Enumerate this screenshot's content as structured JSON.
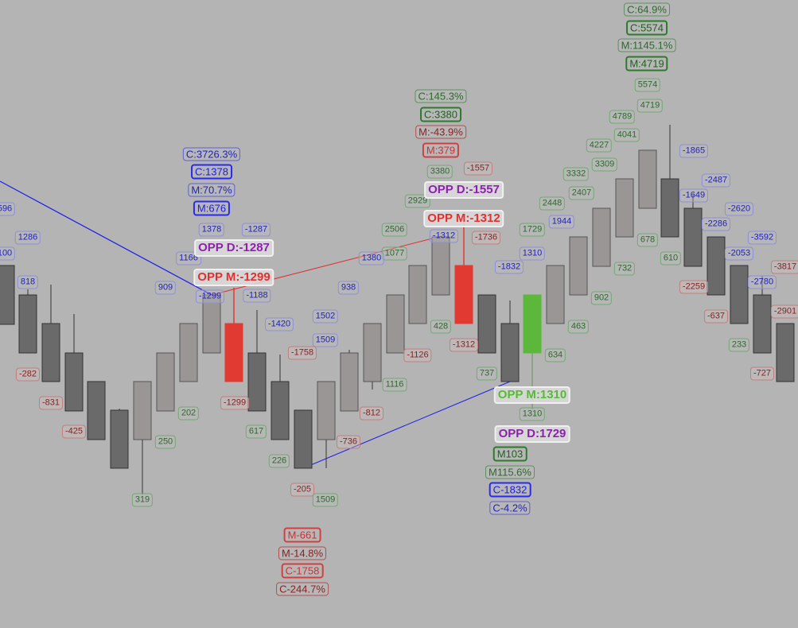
{
  "chart_data": {
    "type": "candlestick",
    "colors": {
      "up": "#9a9696",
      "down": "#6a6a6a",
      "highlight_down": "#e03a32",
      "highlight_up": "#5cb83a",
      "trend_blue": "#1a1aee",
      "trend_red": "#e03030"
    },
    "labels": [
      {
        "text": "C:64.9%",
        "style": "gm"
      },
      {
        "text": "C:5574",
        "style": "gs"
      },
      {
        "text": "M:1145.1%",
        "style": "gm"
      },
      {
        "text": "M:4719",
        "style": "gs"
      },
      {
        "text": "5574",
        "style": "g"
      },
      {
        "text": "4719",
        "style": "g"
      },
      {
        "text": "4789",
        "style": "g"
      },
      {
        "text": "4041",
        "style": "g"
      },
      {
        "text": "4227",
        "style": "g"
      },
      {
        "text": "3309",
        "style": "g"
      },
      {
        "text": "3332",
        "style": "g"
      },
      {
        "text": "2407",
        "style": "g"
      },
      {
        "text": "2448",
        "style": "g"
      },
      {
        "text": "1729",
        "style": "g"
      },
      {
        "text": "1944",
        "style": "b"
      },
      {
        "text": "1310",
        "style": "b"
      },
      {
        "text": "-1832",
        "style": "b"
      },
      {
        "text": "-1736",
        "style": "r"
      },
      {
        "text": "-1312",
        "style": "b faint"
      },
      {
        "text": "-1557",
        "style": "r"
      },
      {
        "text": "C:145.3%",
        "style": "gm"
      },
      {
        "text": "C:3380",
        "style": "gs"
      },
      {
        "text": "M:-43.9%",
        "style": "rm"
      },
      {
        "text": "M:379",
        "style": "rs"
      },
      {
        "text": "3380",
        "style": "g"
      },
      {
        "text": "2929",
        "style": "g"
      },
      {
        "text": "2506",
        "style": "g"
      },
      {
        "text": "1077",
        "style": "g"
      },
      {
        "text": "1380",
        "style": "b"
      },
      {
        "text": "938",
        "style": "b"
      },
      {
        "text": "1502",
        "style": "b"
      },
      {
        "text": "1509",
        "style": "b"
      },
      {
        "text": "-1758",
        "style": "r"
      },
      {
        "text": "-1420",
        "style": "b"
      },
      {
        "text": "-1188",
        "style": "b"
      },
      {
        "text": "-1299",
        "style": "b faint"
      },
      {
        "text": "-1287",
        "style": "b"
      },
      {
        "text": "C:3726.3%",
        "style": "bm"
      },
      {
        "text": "C:1378",
        "style": "bs"
      },
      {
        "text": "M:70.7%",
        "style": "bm"
      },
      {
        "text": "M:676",
        "style": "bs"
      },
      {
        "text": "1378",
        "style": "b"
      },
      {
        "text": "1166",
        "style": "b"
      },
      {
        "text": "909",
        "style": "b"
      },
      {
        "text": "596",
        "style": "b"
      },
      {
        "text": "1286",
        "style": "b"
      },
      {
        "text": "100",
        "style": "b"
      },
      {
        "text": "818",
        "style": "b"
      },
      {
        "text": "-282",
        "style": "r"
      },
      {
        "text": "-831",
        "style": "r"
      },
      {
        "text": "-425",
        "style": "r"
      },
      {
        "text": "319",
        "style": "g"
      },
      {
        "text": "250",
        "style": "g"
      },
      {
        "text": "202",
        "style": "g"
      },
      {
        "text": "-1299",
        "style": "r"
      },
      {
        "text": "617",
        "style": "g"
      },
      {
        "text": "226",
        "style": "g"
      },
      {
        "text": "-205",
        "style": "r"
      },
      {
        "text": "1509",
        "style": "g"
      },
      {
        "text": "-736",
        "style": "r"
      },
      {
        "text": "-812",
        "style": "r"
      },
      {
        "text": "1116",
        "style": "g"
      },
      {
        "text": "-1126",
        "style": "r"
      },
      {
        "text": "428",
        "style": "g"
      },
      {
        "text": "-1312",
        "style": "r"
      },
      {
        "text": "737",
        "style": "g"
      },
      {
        "text": "634",
        "style": "g"
      },
      {
        "text": "463",
        "style": "g"
      },
      {
        "text": "902",
        "style": "g"
      },
      {
        "text": "732",
        "style": "g"
      },
      {
        "text": "678",
        "style": "g"
      },
      {
        "text": "610",
        "style": "g"
      },
      {
        "text": "-2259",
        "style": "r"
      },
      {
        "text": "-637",
        "style": "r"
      },
      {
        "text": "233",
        "style": "g"
      },
      {
        "text": "-727",
        "style": "r"
      },
      {
        "text": "-1865",
        "style": "b"
      },
      {
        "text": "-2487",
        "style": "b"
      },
      {
        "text": "-1649",
        "style": "b"
      },
      {
        "text": "-2620",
        "style": "b"
      },
      {
        "text": "-2286",
        "style": "b"
      },
      {
        "text": "-3592",
        "style": "b"
      },
      {
        "text": "-2053",
        "style": "b"
      },
      {
        "text": "-3817",
        "style": "r"
      },
      {
        "text": "-2780",
        "style": "b"
      },
      {
        "text": "-2901",
        "style": "r"
      },
      {
        "text": "1310",
        "style": "g"
      },
      {
        "text": "OPP D:-1287",
        "style": "opp od"
      },
      {
        "text": "OPP M:-1299",
        "style": "opp om"
      },
      {
        "text": "OPP D:-1557",
        "style": "opp od"
      },
      {
        "text": "OPP M:-1312",
        "style": "opp om"
      },
      {
        "text": "OPP M:1310",
        "style": "opp og"
      },
      {
        "text": "OPP D:1729",
        "style": "opp od"
      },
      {
        "text": "M103",
        "style": "gs"
      },
      {
        "text": "M115.6%",
        "style": "gm"
      },
      {
        "text": "C-1832",
        "style": "bs"
      },
      {
        "text": "C-4.2%",
        "style": "bm"
      },
      {
        "text": "M-661",
        "style": "rs"
      },
      {
        "text": "M-14.8%",
        "style": "rm"
      },
      {
        "text": "C-1758",
        "style": "rs"
      },
      {
        "text": "C-244.7%",
        "style": "rm"
      }
    ]
  }
}
